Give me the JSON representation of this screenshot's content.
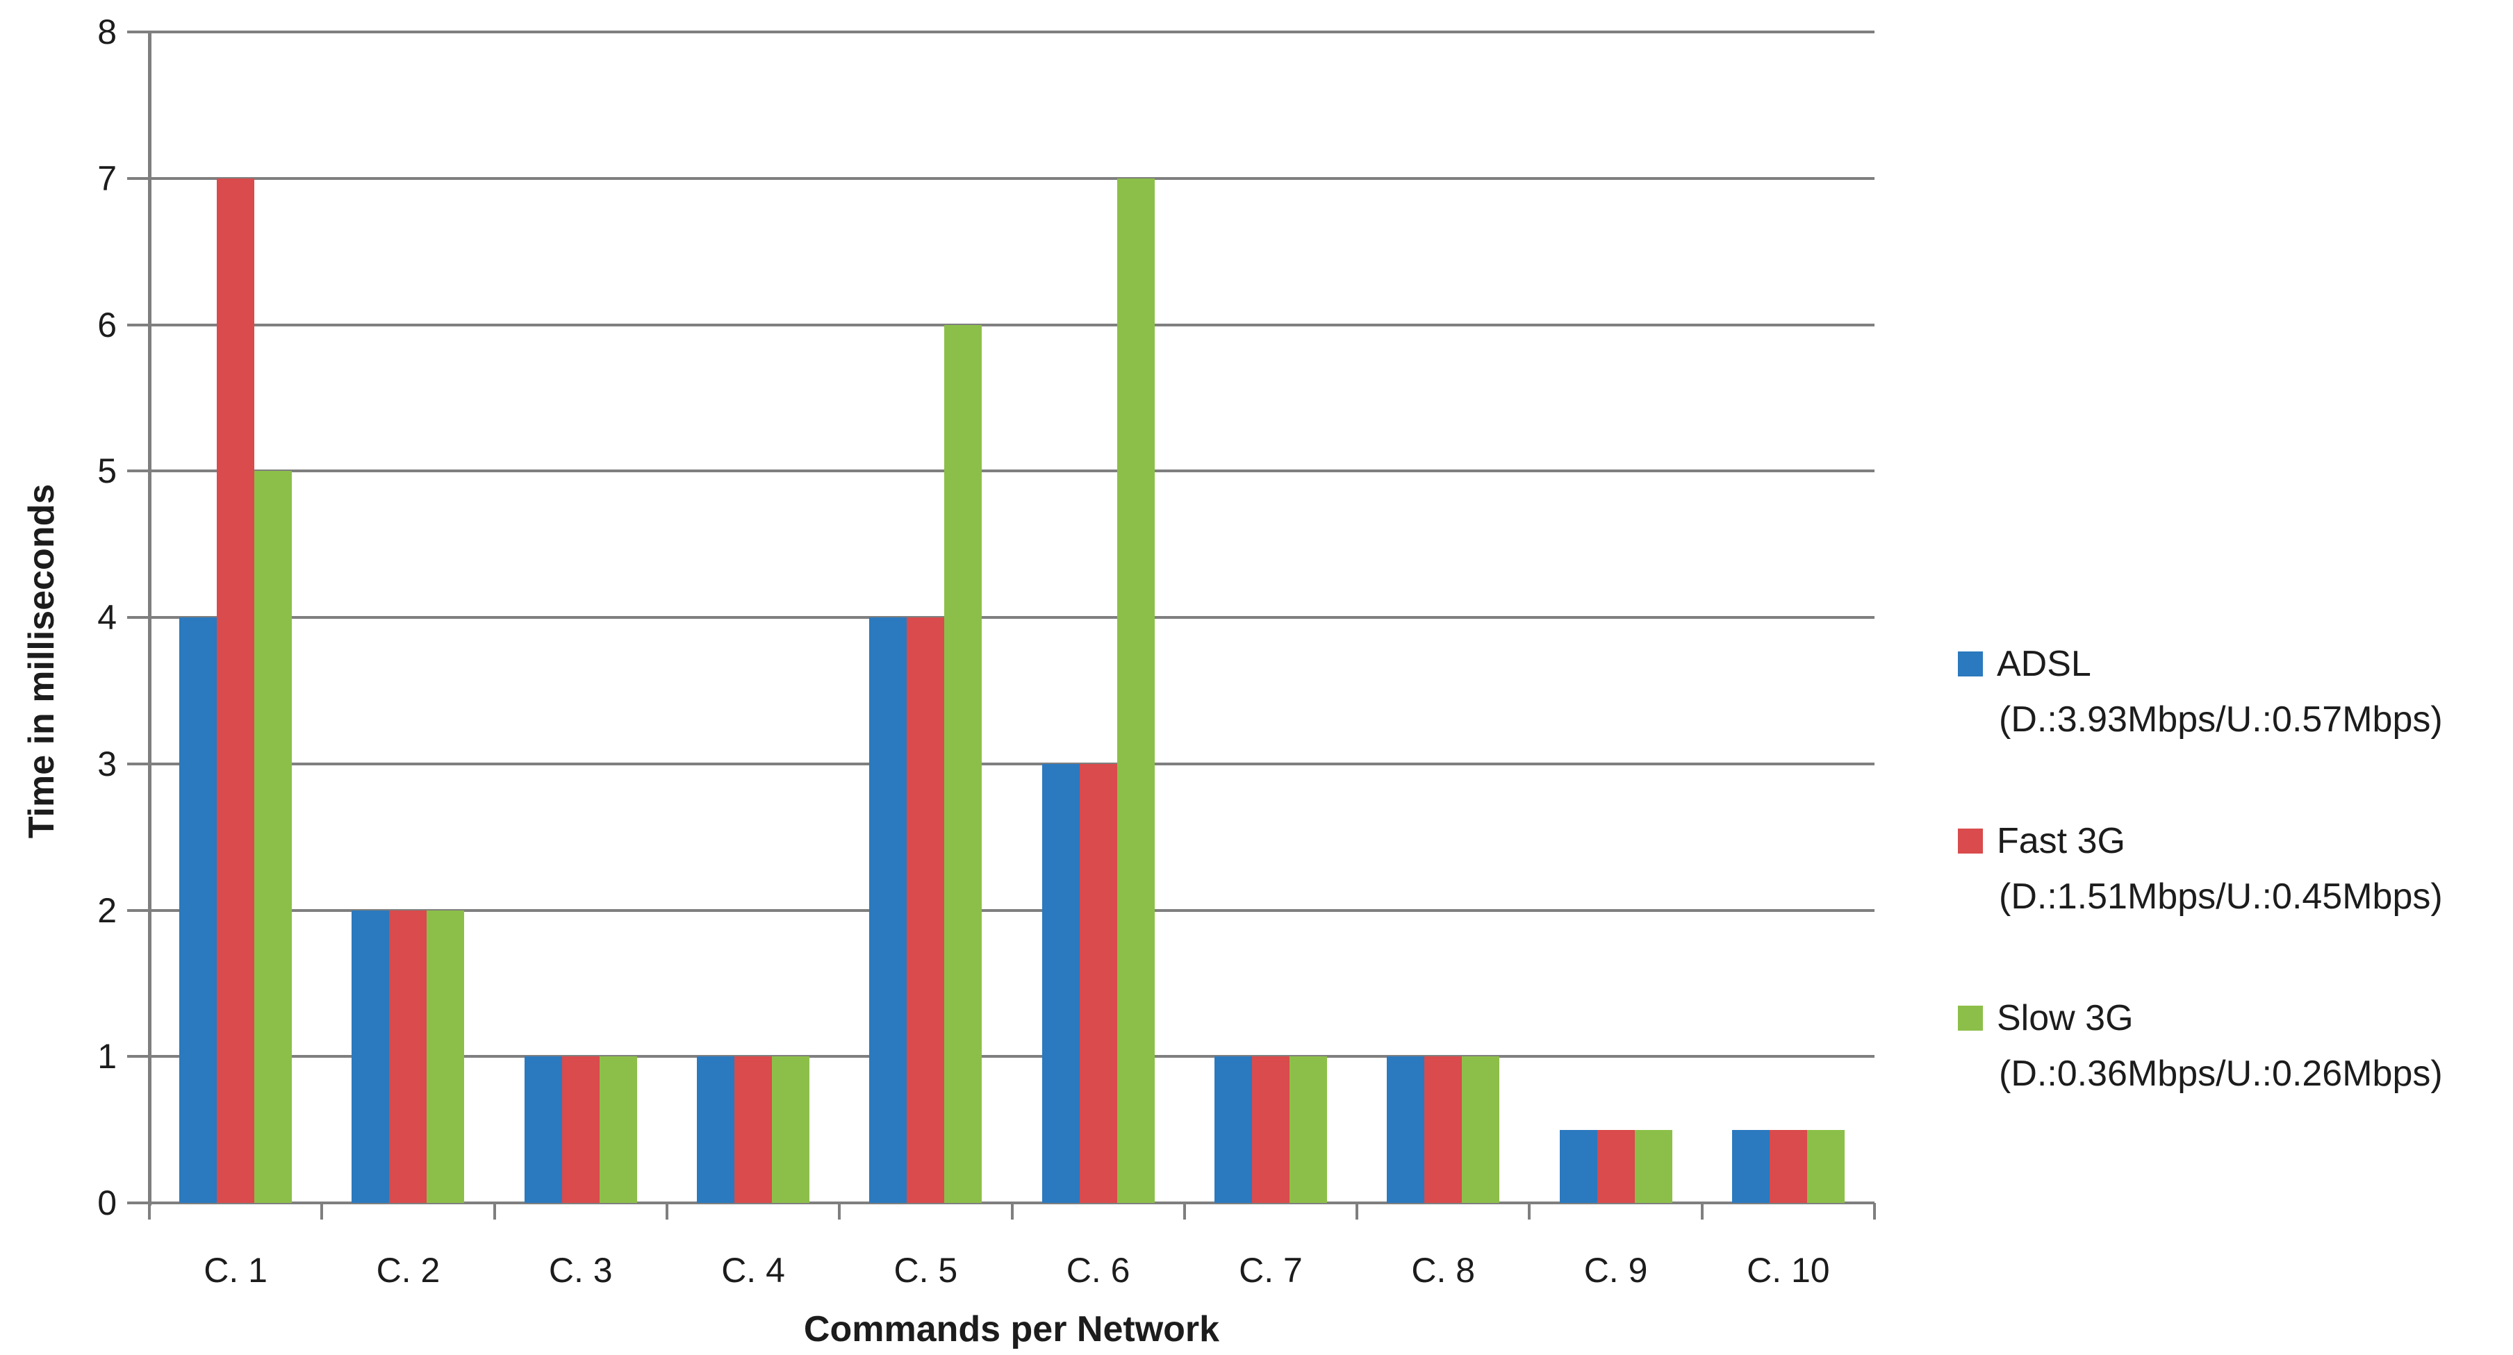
{
  "chart_data": {
    "type": "bar",
    "title": "",
    "xlabel": "Commands per Network",
    "ylabel": "Time in milliseconds",
    "categories": [
      "C. 1",
      "C. 2",
      "C. 3",
      "C. 4",
      "C. 5",
      "C. 6",
      "C. 7",
      "C. 8",
      "C. 9",
      "C. 10"
    ],
    "series": [
      {
        "name": "ADSL",
        "detail": "(D.:3.93Mbps/U.:0.57Mbps)",
        "color": "#2B79BE",
        "values": [
          4,
          2,
          1,
          1,
          4,
          3,
          1,
          1,
          0.5,
          0.5
        ]
      },
      {
        "name": "Fast 3G",
        "detail": "(D.:1.51Mbps/U.:0.45Mbps)",
        "color": "#D94B4C",
        "values": [
          7,
          2,
          1,
          1,
          4,
          3,
          1,
          1,
          0.5,
          0.5
        ]
      },
      {
        "name": "Slow 3G",
        "detail": "(D.:0.36Mbps/U.:0.26Mbps)",
        "color": "#8CBF49",
        "values": [
          5,
          2,
          1,
          1,
          6,
          7,
          1,
          1,
          0.5,
          0.5
        ]
      }
    ],
    "ylim": [
      0,
      8
    ],
    "ytick_step": 1,
    "grid": true,
    "legend_position": "right"
  },
  "colors": {
    "grid": "#7F7F7F",
    "axis": "#7F7F7F",
    "text": "#1C1C1C",
    "background": "#FFFFFF"
  }
}
